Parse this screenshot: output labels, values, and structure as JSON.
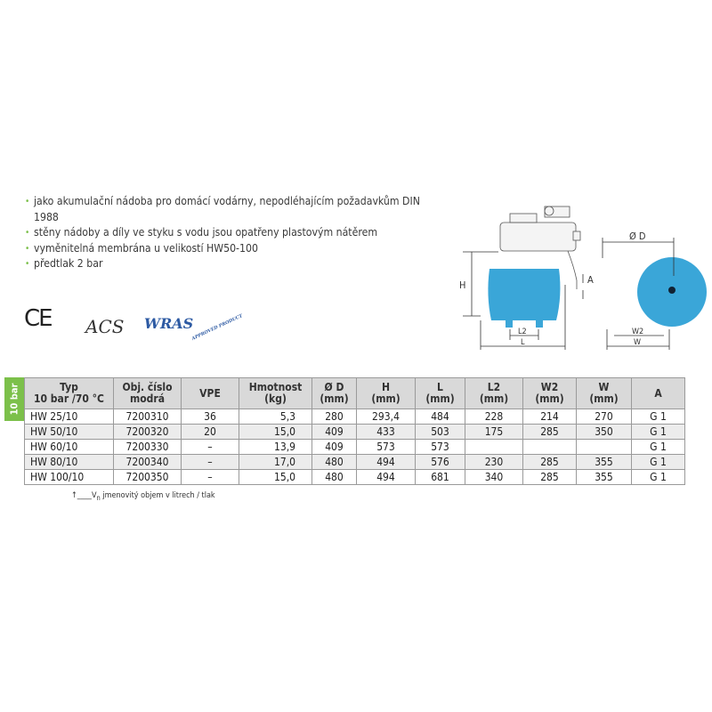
{
  "bullets": [
    "jako akumulační nádoba pro domácí vodárny, nepodléhajícím požadavkům DIN 1988",
    "stěny nádoby a díly ve styku s vodu jsou opatřeny plastovým nátěrem",
    "vyměnitelná membrána u velikostí HW50-100",
    "předtlak 2 bar"
  ],
  "logos": {
    "ce": "CE",
    "acs": "ACS",
    "wras": "WRAS",
    "wras_sub": "APPROVED PRODUCT"
  },
  "diagram": {
    "labels": {
      "h": "H",
      "a": "A",
      "l2": "L2",
      "l": "L",
      "d": "Ø D",
      "w2": "W2",
      "w": "W"
    },
    "tank_color": "#3aa6d8"
  },
  "tab_label": "10 bar",
  "table": {
    "headers": [
      [
        "Typ",
        "10 bar /70 °C"
      ],
      [
        "Obj. číslo",
        "modrá"
      ],
      [
        "VPE",
        ""
      ],
      [
        "Hmotnost",
        "(kg)"
      ],
      [
        "Ø D",
        "(mm)"
      ],
      [
        "H",
        "(mm)"
      ],
      [
        "L",
        "(mm)"
      ],
      [
        "L2",
        "(mm)"
      ],
      [
        "W2",
        "(mm)"
      ],
      [
        "W",
        "(mm)"
      ],
      [
        "A",
        ""
      ]
    ],
    "rows": [
      [
        "HW 25/10",
        "7200310",
        "36",
        "5,3",
        "280",
        "293,4",
        "484",
        "228",
        "214",
        "270",
        "G 1"
      ],
      [
        "HW 50/10",
        "7200320",
        "20",
        "15,0",
        "409",
        "433",
        "503",
        "175",
        "285",
        "350",
        "G 1"
      ],
      [
        "HW 60/10",
        "7200330",
        "–",
        "13,9",
        "409",
        "573",
        "573",
        "",
        "",
        "",
        "G 1"
      ],
      [
        "HW 80/10",
        "7200340",
        "–",
        "17,0",
        "480",
        "494",
        "576",
        "230",
        "285",
        "355",
        "G 1"
      ],
      [
        "HW 100/10",
        "7200350",
        "–",
        "15,0",
        "480",
        "494",
        "681",
        "340",
        "285",
        "355",
        "G 1"
      ]
    ]
  },
  "footnote": {
    "v": "V",
    "sub": "n",
    "text": " jmenovitý objem v litrech / tlak"
  },
  "colors": {
    "accent": "#7cc04a",
    "header_bg": "#d9d9d9",
    "alt_row": "#ececec"
  }
}
